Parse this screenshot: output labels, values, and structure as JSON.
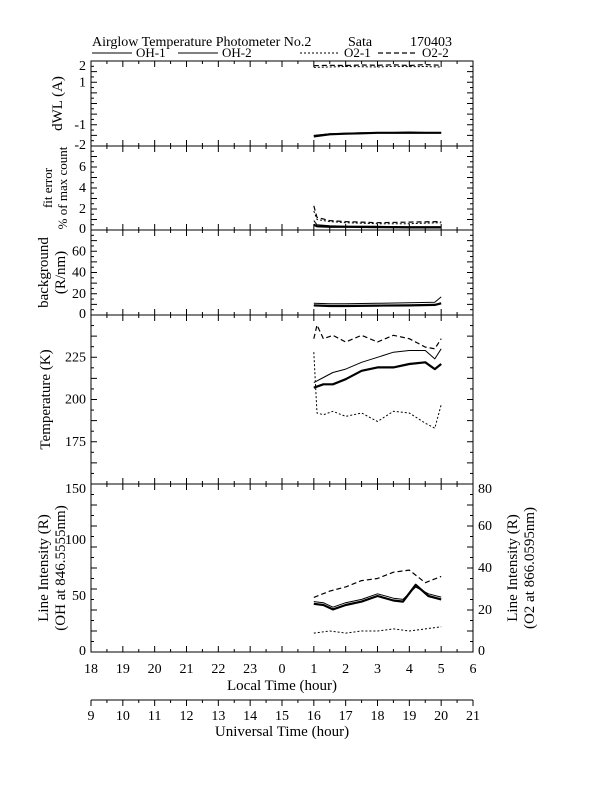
{
  "title": {
    "main": "Airglow Temperature Photometer No.2",
    "site": "Sata",
    "date": "170403"
  },
  "legend": [
    "OH-1",
    "OH-2",
    "O2-1",
    "O2-2"
  ],
  "x_local": {
    "label": "Local Time (hour)",
    "ticks": [
      "18",
      "19",
      "20",
      "21",
      "22",
      "23",
      "0",
      "1",
      "2",
      "3",
      "4",
      "5",
      "6"
    ]
  },
  "x_ut": {
    "label": "Universal Time (hour)",
    "ticks": [
      "9",
      "10",
      "11",
      "12",
      "13",
      "14",
      "15",
      "16",
      "17",
      "18",
      "19",
      "20",
      "21"
    ]
  },
  "chart_data": [
    {
      "type": "line",
      "ylabel": "dWL (A)",
      "ylim": [
        -2,
        2
      ],
      "yticks": [
        "2",
        "1",
        "-1",
        "-2"
      ],
      "x_range_local": [
        18,
        30
      ],
      "series": [
        {
          "name": "OH-1",
          "style": "solid-thick",
          "x": [
            25.0,
            25.5,
            26.0,
            26.5,
            27.0,
            27.5,
            28.0,
            28.5,
            29.0
          ],
          "y": [
            -1.55,
            -1.45,
            -1.42,
            -1.4,
            -1.38,
            -1.38,
            -1.37,
            -1.38,
            -1.38
          ]
        },
        {
          "name": "OH-2",
          "style": "solid",
          "x": [
            25.0,
            25.5,
            26.0,
            26.5,
            27.0,
            27.5,
            28.0,
            28.5,
            29.0
          ],
          "y": [
            -1.5,
            -1.42,
            -1.4,
            -1.38,
            -1.37,
            -1.37,
            -1.36,
            -1.37,
            -1.37
          ]
        },
        {
          "name": "O2-1",
          "style": "dotted",
          "x": [
            25.0,
            25.5,
            26.0,
            26.5,
            27.0,
            27.5,
            28.0,
            28.5,
            29.0
          ],
          "y": [
            1.7,
            1.72,
            1.74,
            1.73,
            1.72,
            1.75,
            1.73,
            1.74,
            1.72
          ]
        },
        {
          "name": "O2-2",
          "style": "dashed",
          "x": [
            25.0,
            25.5,
            26.0,
            26.5,
            27.0,
            27.5,
            28.0,
            28.5,
            29.0
          ],
          "y": [
            1.78,
            1.8,
            1.79,
            1.81,
            1.8,
            1.82,
            1.79,
            1.83,
            1.8
          ]
        }
      ]
    },
    {
      "type": "line",
      "ylabel": "fit error",
      "ylabel2": "% of max count",
      "ylim": [
        0,
        8
      ],
      "yticks": [
        "6",
        "4",
        "2",
        "0"
      ],
      "x_range_local": [
        18,
        30
      ],
      "series": [
        {
          "name": "OH-1",
          "style": "solid-thick",
          "x": [
            25.0,
            25.1,
            25.5,
            26.0,
            27.0,
            28.0,
            29.0
          ],
          "y": [
            0.5,
            0.35,
            0.3,
            0.3,
            0.28,
            0.25,
            0.25
          ]
        },
        {
          "name": "OH-2",
          "style": "solid",
          "x": [
            25.0,
            25.1,
            25.5,
            26.0,
            27.0,
            28.0,
            29.0
          ],
          "y": [
            0.9,
            0.5,
            0.4,
            0.35,
            0.35,
            0.3,
            0.3
          ]
        },
        {
          "name": "O2-1",
          "style": "dotted",
          "x": [
            25.0,
            25.1,
            25.5,
            26.0,
            27.0,
            28.0,
            29.0
          ],
          "y": [
            1.8,
            1.0,
            0.8,
            0.7,
            0.6,
            0.6,
            0.7
          ]
        },
        {
          "name": "O2-2",
          "style": "dashed",
          "x": [
            25.0,
            25.1,
            25.5,
            26.0,
            27.0,
            28.0,
            29.0
          ],
          "y": [
            2.3,
            1.2,
            0.9,
            0.8,
            0.7,
            0.75,
            0.8
          ]
        }
      ]
    },
    {
      "type": "line",
      "ylabel": "background",
      "ylabel2": "(R/nm)",
      "ylim": [
        0,
        80
      ],
      "yticks": [
        "60",
        "40",
        "20",
        "0"
      ],
      "x_range_local": [
        18,
        30
      ],
      "series": [
        {
          "name": "OH-1",
          "style": "solid-thick",
          "x": [
            25.0,
            25.5,
            26.0,
            27.0,
            28.0,
            28.8,
            29.0
          ],
          "y": [
            9,
            8.5,
            8.5,
            8.8,
            9,
            9.5,
            11
          ]
        },
        {
          "name": "OH-2",
          "style": "solid",
          "x": [
            25.0,
            25.5,
            26.0,
            27.0,
            28.0,
            28.8,
            29.0
          ],
          "y": [
            11,
            10.5,
            10.5,
            11,
            11.5,
            12,
            17
          ]
        }
      ]
    },
    {
      "type": "line",
      "ylabel": "Temperature (K)",
      "ylim": [
        150,
        250
      ],
      "yticks": [
        "225",
        "200",
        "175"
      ],
      "x_range_local": [
        18,
        30
      ],
      "series": [
        {
          "name": "OH-1",
          "style": "solid-thick",
          "x": [
            25.0,
            25.3,
            25.6,
            26.0,
            26.5,
            27.0,
            27.5,
            28.0,
            28.5,
            28.8,
            29.0
          ],
          "y": [
            207,
            209,
            209,
            212,
            217,
            219,
            219,
            221,
            222,
            218,
            221
          ]
        },
        {
          "name": "OH-2",
          "style": "solid",
          "x": [
            25.0,
            25.3,
            25.6,
            26.0,
            26.5,
            27.0,
            27.5,
            28.0,
            28.5,
            28.8,
            29.0
          ],
          "y": [
            210,
            213,
            216,
            218,
            222,
            225,
            228,
            229,
            229,
            224,
            230
          ]
        },
        {
          "name": "O2-1",
          "style": "dotted",
          "x": [
            25.0,
            25.1,
            25.3,
            25.6,
            26.0,
            26.5,
            27.0,
            27.5,
            28.0,
            28.5,
            28.8,
            29.0
          ],
          "y": [
            228,
            192,
            191,
            193,
            190,
            192,
            187,
            193,
            192,
            186,
            183,
            197
          ]
        },
        {
          "name": "O2-2",
          "style": "dashed",
          "x": [
            25.0,
            25.1,
            25.3,
            25.6,
            26.0,
            26.5,
            27.0,
            27.5,
            28.0,
            28.5,
            28.8,
            29.0
          ],
          "y": [
            236,
            244,
            236,
            238,
            234,
            238,
            234,
            238,
            236,
            231,
            230,
            236
          ]
        }
      ]
    },
    {
      "type": "line",
      "ylabel": "Line Intensity (R)",
      "ylabel2": "(OH at 846.5555nm)",
      "ylim": [
        0,
        150
      ],
      "yticks": [
        "150",
        "100",
        "50",
        "0"
      ],
      "y2label": "Line Intensity (R)",
      "y2label2": "(O2 at 866.0595nm)",
      "y2lim": [
        0,
        80
      ],
      "y2ticks": [
        "80",
        "60",
        "40",
        "20",
        "0"
      ],
      "x_range_local": [
        18,
        30
      ],
      "series": [
        {
          "name": "OH-1",
          "style": "solid-thick",
          "axis": "left",
          "x": [
            25.0,
            25.3,
            25.6,
            26.0,
            26.5,
            27.0,
            27.5,
            27.8,
            28.2,
            28.6,
            29.0
          ],
          "y": [
            43,
            42,
            38,
            42,
            45,
            50,
            46,
            45,
            60,
            50,
            47
          ]
        },
        {
          "name": "OH-2",
          "style": "solid",
          "axis": "left",
          "x": [
            25.0,
            25.3,
            25.6,
            26.0,
            26.5,
            27.0,
            27.5,
            27.8,
            28.2,
            28.6,
            29.0
          ],
          "y": [
            45,
            44,
            40,
            44,
            47,
            52,
            48,
            47,
            58,
            52,
            49
          ]
        },
        {
          "name": "O2-1",
          "style": "dotted",
          "axis": "right",
          "x": [
            25.0,
            25.5,
            26.0,
            26.5,
            27.0,
            27.5,
            28.0,
            28.5,
            29.0
          ],
          "y": [
            9,
            10,
            9,
            10,
            10,
            11,
            10,
            11,
            12
          ]
        },
        {
          "name": "O2-2",
          "style": "dashed",
          "axis": "right",
          "x": [
            25.0,
            25.5,
            26.0,
            26.5,
            27.0,
            27.5,
            28.0,
            28.5,
            29.0
          ],
          "y": [
            26,
            29,
            31,
            34,
            35,
            38,
            39,
            33,
            36
          ]
        }
      ]
    }
  ]
}
